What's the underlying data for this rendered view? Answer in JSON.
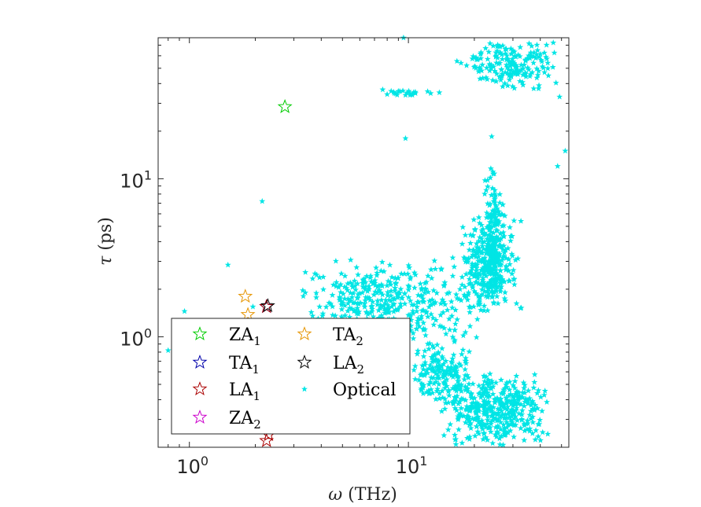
{
  "chart_data": {
    "type": "scatter",
    "title": "",
    "xscale": "log",
    "yscale": "log",
    "xlim": [
      0.72,
      54
    ],
    "ylim": [
      0.2,
      78
    ],
    "xlabel": {
      "symbol": "ω",
      "unit": "(THz)"
    },
    "ylabel": {
      "symbol": "τ",
      "unit": "(ps)"
    },
    "x_ticks": [
      {
        "base": "10",
        "exp": "0"
      },
      {
        "base": "10",
        "exp": "1"
      }
    ],
    "y_ticks": [
      {
        "base": "10",
        "exp": "0"
      },
      {
        "base": "10",
        "exp": "1"
      }
    ],
    "grid": false,
    "legend": {
      "placement": "lower-left",
      "columns": 2,
      "entries": [
        {
          "label": "ZA",
          "sub": "1",
          "color": "#00cc00",
          "marker": "star-open"
        },
        {
          "label": "TA",
          "sub": "1",
          "color": "#0000aa",
          "marker": "star-open"
        },
        {
          "label": "LA",
          "sub": "1",
          "color": "#aa0000",
          "marker": "star-open"
        },
        {
          "label": "ZA",
          "sub": "2",
          "color": "#cc00cc",
          "marker": "star-open"
        },
        {
          "label": "TA",
          "sub": "2",
          "color": "#e69500",
          "marker": "star-open"
        },
        {
          "label": "LA",
          "sub": "2",
          "color": "#000000",
          "marker": "star-open"
        },
        {
          "label": "Optical",
          "sub": "",
          "color": "#00e5e5",
          "marker": "star-small"
        }
      ]
    },
    "series": [
      {
        "name": "ZA1",
        "color": "#00cc00",
        "points": [
          [
            2.73,
            28.5
          ]
        ]
      },
      {
        "name": "TA1",
        "color": "#0000aa",
        "points": [
          [
            2.25,
            1.55
          ]
        ]
      },
      {
        "name": "LA1",
        "color": "#aa0000",
        "points": [
          [
            2.25,
            1.55
          ],
          [
            2.3,
            0.24
          ],
          [
            2.25,
            0.22
          ]
        ]
      },
      {
        "name": "ZA2",
        "color": "#cc00cc",
        "points": []
      },
      {
        "name": "TA2",
        "color": "#e69500",
        "points": [
          [
            1.8,
            1.8
          ],
          [
            1.85,
            1.38
          ]
        ]
      },
      {
        "name": "LA2",
        "color": "#000000",
        "points": [
          [
            2.28,
            1.57
          ]
        ]
      },
      {
        "name": "Optical",
        "color": "#00e5e5",
        "clusters": [
          {
            "x": [
              16.3,
              53.0
            ],
            "y": [
              34,
              78
            ],
            "n": 180
          },
          {
            "x": [
              6.3,
              14.0
            ],
            "y": [
              33,
              37
            ],
            "n": 22
          },
          {
            "x": [
              22.0,
              28.0
            ],
            "y": [
              1.9,
              12
            ],
            "n": 120
          },
          {
            "x": [
              17.0,
              33.0
            ],
            "y": [
              1.3,
              6.2
            ],
            "n": 340
          },
          {
            "x": [
              3.0,
              22.0
            ],
            "y": [
              0.75,
              3.4
            ],
            "n": 420
          },
          {
            "x": [
              10.0,
              20.0
            ],
            "y": [
              0.35,
              1.0
            ],
            "n": 160
          },
          {
            "x": [
              14.0,
              45.0
            ],
            "y": [
              0.2,
              0.6
            ],
            "n": 420
          }
        ],
        "points": [
          [
            9.5,
            78
          ],
          [
            9.7,
            18
          ],
          [
            2.15,
            7.2
          ],
          [
            1.5,
            2.85
          ],
          [
            1.95,
            1.55
          ],
          [
            0.95,
            1.45
          ],
          [
            0.8,
            0.82
          ],
          [
            24.0,
            18.5
          ],
          [
            48.0,
            12
          ],
          [
            52.0,
            15
          ],
          [
            49.0,
            33
          ]
        ]
      }
    ]
  }
}
